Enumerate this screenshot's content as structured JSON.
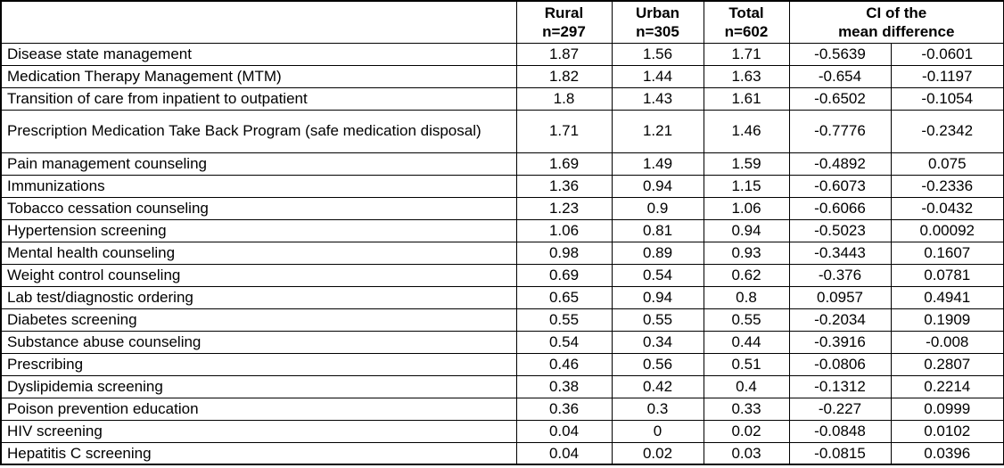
{
  "table": {
    "header": {
      "label": "",
      "rural": {
        "line1": "Rural",
        "line2": "n=297"
      },
      "urban": {
        "line1": "Urban",
        "line2": "n=305"
      },
      "total": {
        "line1": "Total",
        "line2": "n=602"
      },
      "ci": {
        "line1": "CI of the",
        "line2": "mean difference"
      }
    },
    "rows": [
      {
        "label": "Disease state management",
        "rural": "1.87",
        "urban": "1.56",
        "total": "1.71",
        "ci_low": "-0.5639",
        "ci_high": "-0.0601",
        "tall": false
      },
      {
        "label": "Medication Therapy Management (MTM)",
        "rural": "1.82",
        "urban": "1.44",
        "total": "1.63",
        "ci_low": "-0.654",
        "ci_high": "-0.1197",
        "tall": false
      },
      {
        "label": "Transition of care from inpatient to outpatient",
        "rural": "1.8",
        "urban": "1.43",
        "total": "1.61",
        "ci_low": "-0.6502",
        "ci_high": "-0.1054",
        "tall": false
      },
      {
        "label": "Prescription Medication Take Back Program (safe medication disposal)",
        "rural": "1.71",
        "urban": "1.21",
        "total": "1.46",
        "ci_low": "-0.7776",
        "ci_high": "-0.2342",
        "tall": true
      },
      {
        "label": "Pain management counseling",
        "rural": "1.69",
        "urban": "1.49",
        "total": "1.59",
        "ci_low": "-0.4892",
        "ci_high": "0.075",
        "tall": false
      },
      {
        "label": "Immunizations",
        "rural": "1.36",
        "urban": "0.94",
        "total": "1.15",
        "ci_low": "-0.6073",
        "ci_high": "-0.2336",
        "tall": false
      },
      {
        "label": "Tobacco cessation counseling",
        "rural": "1.23",
        "urban": "0.9",
        "total": "1.06",
        "ci_low": "-0.6066",
        "ci_high": "-0.0432",
        "tall": false
      },
      {
        "label": "Hypertension screening",
        "rural": "1.06",
        "urban": "0.81",
        "total": "0.94",
        "ci_low": "-0.5023",
        "ci_high": "0.00092",
        "tall": false
      },
      {
        "label": "Mental health counseling",
        "rural": "0.98",
        "urban": "0.89",
        "total": "0.93",
        "ci_low": "-0.3443",
        "ci_high": "0.1607",
        "tall": false
      },
      {
        "label": "Weight control counseling",
        "rural": "0.69",
        "urban": "0.54",
        "total": "0.62",
        "ci_low": "-0.376",
        "ci_high": "0.0781",
        "tall": false
      },
      {
        "label": "Lab test/diagnostic ordering",
        "rural": "0.65",
        "urban": "0.94",
        "total": "0.8",
        "ci_low": "0.0957",
        "ci_high": "0.4941",
        "tall": false
      },
      {
        "label": "Diabetes screening",
        "rural": "0.55",
        "urban": "0.55",
        "total": "0.55",
        "ci_low": "-0.2034",
        "ci_high": "0.1909",
        "tall": false
      },
      {
        "label": "Substance abuse counseling",
        "rural": "0.54",
        "urban": "0.34",
        "total": "0.44",
        "ci_low": "-0.3916",
        "ci_high": "-0.008",
        "tall": false
      },
      {
        "label": "Prescribing",
        "rural": "0.46",
        "urban": "0.56",
        "total": "0.51",
        "ci_low": "-0.0806",
        "ci_high": "0.2807",
        "tall": false
      },
      {
        "label": "Dyslipidemia screening",
        "rural": "0.38",
        "urban": "0.42",
        "total": "0.4",
        "ci_low": "-0.1312",
        "ci_high": "0.2214",
        "tall": false
      },
      {
        "label": "Poison prevention education",
        "rural": "0.36",
        "urban": "0.3",
        "total": "0.33",
        "ci_low": "-0.227",
        "ci_high": "0.0999",
        "tall": false
      },
      {
        "label": "HIV screening",
        "rural": "0.04",
        "urban": "0",
        "total": "0.02",
        "ci_low": "-0.0848",
        "ci_high": "0.0102",
        "tall": false
      },
      {
        "label": "Hepatitis C screening",
        "rural": "0.04",
        "urban": "0.02",
        "total": "0.03",
        "ci_low": "-0.0815",
        "ci_high": "0.0396",
        "tall": false
      }
    ]
  },
  "colors": {
    "border": "#000000",
    "text": "#000000",
    "background": "#ffffff"
  }
}
